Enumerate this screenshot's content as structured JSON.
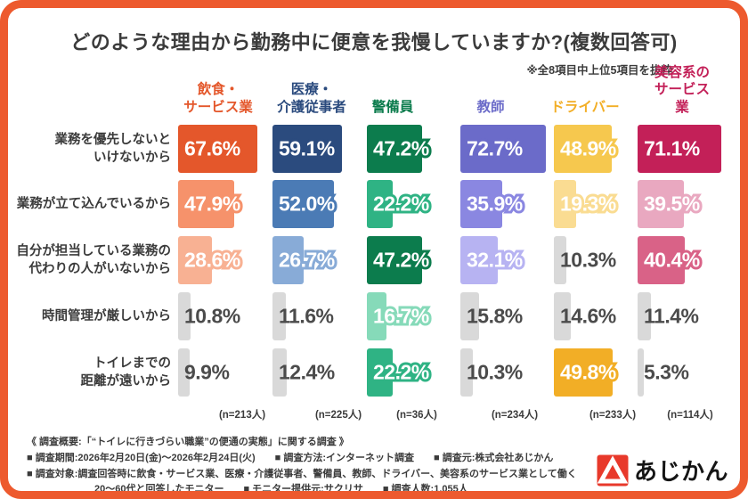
{
  "title": "どのような理由から勤務中に便意を我慢していますか?(複数回答可)",
  "subtitle_note": "※全8項目中上位5項目を抜粋",
  "chart_data": {
    "type": "bar",
    "orientation": "horizontal",
    "value_unit": "%",
    "note": "値のランク1〜3位は濃→淡の列カラー、4位以下はグレー",
    "row_labels": [
      "業務を優先しないと\nいけないから",
      "業務が立て込んでいるから",
      "自分が担当している業務の\n代わりの人がいないから",
      "時間管理が厳しいから",
      "トイレまでの\n距離が遠いから"
    ],
    "columns": [
      {
        "label": "飲食・\nサービス業",
        "n": 213,
        "n_label": "(n=213人)",
        "shades": [
          "#E4572B",
          "#F6926B",
          "#F8B193"
        ],
        "values": [
          67.6,
          47.9,
          28.6,
          10.8,
          9.9
        ]
      },
      {
        "label": "医療・\n介護従事者",
        "n": 225,
        "n_label": "(n=225人)",
        "shades": [
          "#2B4B7E",
          "#4B7BB5",
          "#88ABD7"
        ],
        "values": [
          59.1,
          52.0,
          26.7,
          11.6,
          12.4
        ]
      },
      {
        "label": "警備員",
        "n": 36,
        "n_label": "(n=36人)",
        "shades": [
          "#0C7C4D",
          "#2FB384",
          "#86DAB9"
        ],
        "values": [
          47.2,
          22.2,
          47.2,
          16.7,
          22.2
        ]
      },
      {
        "label": "教師",
        "n": 234,
        "n_label": "(n=234人)",
        "shades": [
          "#6B6BC9",
          "#8A87E1",
          "#B7B3F2"
        ],
        "values": [
          72.7,
          35.9,
          32.1,
          15.8,
          10.3
        ]
      },
      {
        "label": "ドライバー",
        "n": 233,
        "n_label": "(n=233人)",
        "shades": [
          "#F2AE26",
          "#F6C84E",
          "#FADC92"
        ],
        "values": [
          48.9,
          19.3,
          10.3,
          14.6,
          49.8
        ]
      },
      {
        "label": "美容系の\nサービス業",
        "n": 114,
        "n_label": "(n=114人)",
        "shades": [
          "#C32058",
          "#D96287",
          "#E9A8C0"
        ],
        "values": [
          71.1,
          39.5,
          40.4,
          11.4,
          5.3
        ]
      }
    ],
    "gray_bar_color": "#D9D9D9",
    "gray_text_color": "#4B4B4B"
  },
  "colors": {
    "frame_orange": "#ED5A2E",
    "title_text": "#3B3B3B",
    "logo_red": "#E8392B",
    "logo_text_black": "#151515"
  },
  "footer": {
    "line1": "《 調査概要:「“トイレに行きづらい職業”の便通の実態」に関する調査 》",
    "line2": "■ 調査期間:2026年2月20日(金)〜2026年2月24日(火)　　■ 調査方法:インターネット調査　　■ 調査元:株式会社あじかん",
    "line3": "■ 調査対象:調査回答時に飲食・サービス業、医療・介護従事者、警備員、教師、ドライバー、美容系のサービス業として働く",
    "line4": "20〜60代と回答したモニター　　■ モニター提供元:サクリサ　　■ 調査人数:1,055人"
  },
  "logo": {
    "text": "あじかん",
    "mark": "red-square-white-triangle"
  }
}
